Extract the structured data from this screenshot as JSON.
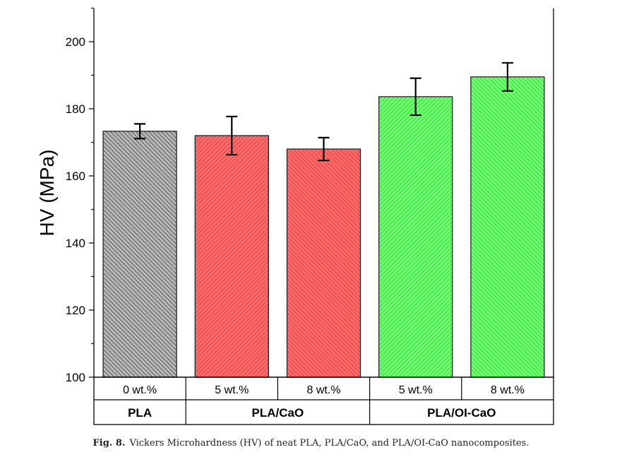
{
  "chart_data": {
    "type": "bar",
    "ylabel": "HV (MPa)",
    "ylim": [
      100,
      210
    ],
    "yticks": [
      "100",
      "120",
      "140",
      "160",
      "180",
      "200"
    ],
    "categories": [
      "0 wt.%",
      "5 wt.%",
      "8 wt.%",
      "5 wt.%",
      "8 wt.%"
    ],
    "groups": [
      {
        "label": "PLA",
        "span": 1
      },
      {
        "label": "PLA/CaO",
        "span": 2
      },
      {
        "label": "PLA/OI-CaO",
        "span": 2
      }
    ],
    "values": [
      173.3,
      172.0,
      168.0,
      183.6,
      189.5
    ],
    "errors": [
      2.2,
      5.7,
      3.4,
      5.5,
      4.2
    ],
    "colors": [
      "#b8b8b8",
      "#ff6b6b",
      "#ff6b6b",
      "#70ff70",
      "#70ff70"
    ],
    "hatch_colors": [
      "#333333",
      "#e03030",
      "#e03030",
      "#20d020",
      "#20d020"
    ],
    "hatch_dir": [
      "back",
      "fwd",
      "back",
      "fwd",
      "back"
    ],
    "grid": false
  },
  "caption": {
    "label": "Fig. 8.",
    "text": "Vickers Microhardness (HV) of neat PLA, PLA/CaO, and PLA/OI-CaO nanocomposites."
  }
}
